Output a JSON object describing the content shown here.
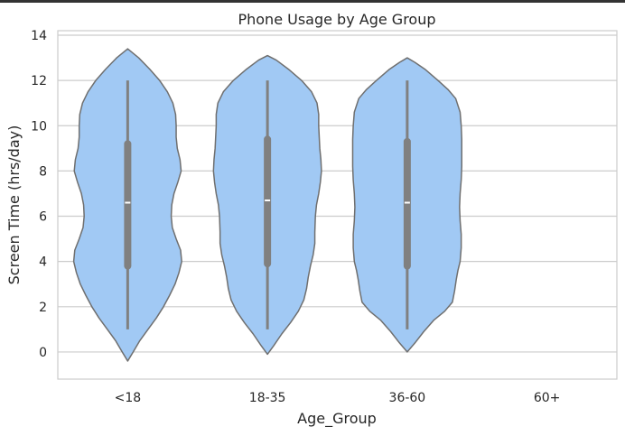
{
  "chart_data": {
    "type": "violin",
    "title": "Phone Usage by Age Group",
    "xlabel": "Age_Group",
    "ylabel": "Screen Time (hrs/day)",
    "ylim": [
      -1.2,
      14.2
    ],
    "yticks": [
      0,
      2,
      4,
      6,
      8,
      10,
      12,
      14
    ],
    "grid": true,
    "colors": {
      "violin_fill": "#a1c9f4",
      "violin_edge": "#6f6f6f",
      "box": "#808080",
      "median": "#ffffff",
      "grid": "#cccccc",
      "spine": "#cccccc"
    },
    "categories": [
      "<18",
      "18-35",
      "36-60",
      "60+"
    ],
    "groups": [
      {
        "category": "<18",
        "whisker_low": 1.0,
        "q1": 3.8,
        "median": 6.6,
        "q3": 9.2,
        "whisker_high": 12.0,
        "kde_range": [
          -0.4,
          13.4
        ],
        "density_profile": [
          [
            -0.4,
            0.0
          ],
          [
            0.0,
            0.1
          ],
          [
            0.5,
            0.22
          ],
          [
            1.0,
            0.37
          ],
          [
            1.5,
            0.52
          ],
          [
            2.0,
            0.65
          ],
          [
            2.5,
            0.76
          ],
          [
            3.0,
            0.86
          ],
          [
            3.5,
            0.93
          ],
          [
            4.0,
            0.98
          ],
          [
            4.5,
            0.96
          ],
          [
            5.0,
            0.88
          ],
          [
            5.5,
            0.81
          ],
          [
            6.0,
            0.79
          ],
          [
            6.5,
            0.8
          ],
          [
            7.0,
            0.84
          ],
          [
            7.5,
            0.91
          ],
          [
            8.0,
            0.97
          ],
          [
            8.5,
            0.95
          ],
          [
            9.0,
            0.9
          ],
          [
            9.5,
            0.88
          ],
          [
            10.0,
            0.88
          ],
          [
            10.5,
            0.87
          ],
          [
            11.0,
            0.82
          ],
          [
            11.5,
            0.72
          ],
          [
            12.0,
            0.58
          ],
          [
            12.5,
            0.4
          ],
          [
            13.0,
            0.2
          ],
          [
            13.4,
            0.0
          ]
        ]
      },
      {
        "category": "18-35",
        "whisker_low": 1.0,
        "q1": 3.9,
        "median": 6.7,
        "q3": 9.4,
        "whisker_high": 12.0,
        "kde_range": [
          -0.1,
          13.1
        ],
        "density_profile": [
          [
            -0.1,
            0.0
          ],
          [
            0.3,
            0.12
          ],
          [
            0.8,
            0.26
          ],
          [
            1.3,
            0.42
          ],
          [
            1.8,
            0.56
          ],
          [
            2.3,
            0.66
          ],
          [
            2.8,
            0.71
          ],
          [
            3.3,
            0.74
          ],
          [
            3.8,
            0.78
          ],
          [
            4.3,
            0.83
          ],
          [
            4.8,
            0.86
          ],
          [
            5.3,
            0.86
          ],
          [
            6.0,
            0.87
          ],
          [
            6.5,
            0.89
          ],
          [
            7.0,
            0.93
          ],
          [
            7.5,
            0.96
          ],
          [
            8.0,
            0.98
          ],
          [
            8.5,
            0.97
          ],
          [
            9.0,
            0.95
          ],
          [
            9.5,
            0.94
          ],
          [
            10.0,
            0.93
          ],
          [
            10.5,
            0.93
          ],
          [
            11.0,
            0.9
          ],
          [
            11.5,
            0.8
          ],
          [
            12.0,
            0.62
          ],
          [
            12.5,
            0.38
          ],
          [
            12.9,
            0.16
          ],
          [
            13.1,
            0.0
          ]
        ]
      },
      {
        "category": "36-60",
        "whisker_low": 1.0,
        "q1": 3.8,
        "median": 6.6,
        "q3": 9.3,
        "whisker_high": 12.0,
        "kde_range": [
          0.0,
          13.0
        ],
        "density_profile": [
          [
            0.0,
            0.0
          ],
          [
            0.4,
            0.14
          ],
          [
            0.9,
            0.3
          ],
          [
            1.4,
            0.48
          ],
          [
            1.8,
            0.68
          ],
          [
            2.2,
            0.82
          ],
          [
            2.7,
            0.86
          ],
          [
            3.2,
            0.89
          ],
          [
            3.6,
            0.92
          ],
          [
            4.0,
            0.96
          ],
          [
            4.6,
            0.98
          ],
          [
            5.2,
            0.98
          ],
          [
            5.8,
            0.96
          ],
          [
            6.4,
            0.95
          ],
          [
            7.0,
            0.96
          ],
          [
            7.6,
            0.98
          ],
          [
            8.2,
            0.99
          ],
          [
            8.8,
            0.99
          ],
          [
            9.4,
            0.99
          ],
          [
            10.0,
            0.98
          ],
          [
            10.6,
            0.96
          ],
          [
            11.2,
            0.88
          ],
          [
            11.6,
            0.74
          ],
          [
            12.0,
            0.56
          ],
          [
            12.5,
            0.32
          ],
          [
            12.8,
            0.14
          ],
          [
            13.0,
            0.0
          ]
        ]
      },
      {
        "category": "60+"
      }
    ]
  }
}
